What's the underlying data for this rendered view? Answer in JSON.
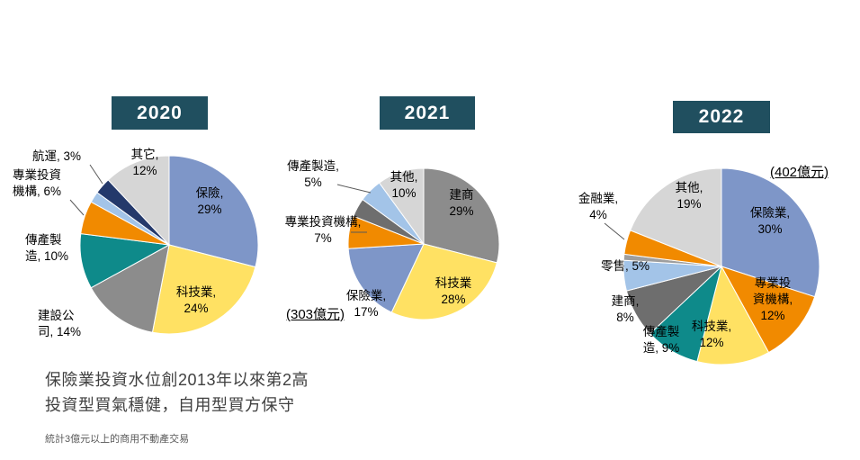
{
  "summary": {
    "line1": "保險業投資水位創2013年以來第2高",
    "line2": "投資型買氣穩健，自用型買方保守",
    "footnote": "統計3億元以上的商用不動產交易"
  },
  "colors": {
    "badge_background": "#204F5F",
    "insurance_blue": "#7E96C8",
    "tech_yellow": "#FFE163",
    "gray": "#8C8C8C",
    "dark_gray": "#6E6E6E",
    "teal": "#0E8A8A",
    "orange": "#F18A00",
    "navy": "#24396B",
    "light_gray": "#D6D6D6",
    "light_blue": "#A3C4E8"
  },
  "chart_data": [
    {
      "type": "pie",
      "title": "2020",
      "total_label": "",
      "direction": "clockwise",
      "start_angle_deg": 0,
      "slices": [
        {
          "name": "保險",
          "pct": 29,
          "color": "#7E96C8",
          "display": "保險,\n29%"
        },
        {
          "name": "科技業",
          "pct": 24,
          "color": "#FFE163",
          "display": "科技業,\n24%"
        },
        {
          "name": "建設公司",
          "pct": 14,
          "color": "#8C8C8C",
          "display": "建設公\n司, 14%"
        },
        {
          "name": "傳產製造",
          "pct": 10,
          "color": "#0E8A8A",
          "display": "傳產製\n造, 10%"
        },
        {
          "name": "專業投資機構",
          "pct": 6,
          "color": "#F18A00",
          "display": "專業投資\n機構, 6%"
        },
        {
          "name": "",
          "pct": 2,
          "color": "#A3C4E8",
          "display": ""
        },
        {
          "name": "航運",
          "pct": 3,
          "color": "#24396B",
          "display": "航運, 3%"
        },
        {
          "name": "其它",
          "pct": 12,
          "color": "#D6D6D6",
          "display": "其它,\n12%"
        }
      ]
    },
    {
      "type": "pie",
      "title": "2021",
      "total_label": "(303億元)",
      "direction": "clockwise",
      "start_angle_deg": 0,
      "slices": [
        {
          "name": "建商",
          "pct": 29,
          "color": "#8C8C8C",
          "display": "建商\n29%"
        },
        {
          "name": "科技業",
          "pct": 28,
          "color": "#FFE163",
          "display": "科技業\n28%"
        },
        {
          "name": "保險業",
          "pct": 17,
          "color": "#7E96C8",
          "display": "保險業,\n17%"
        },
        {
          "name": "專業投資機構",
          "pct": 7,
          "color": "#F18A00",
          "display": "專業投資機構,\n7%"
        },
        {
          "name": "",
          "pct": 4,
          "color": "#6E6E6E",
          "display": ""
        },
        {
          "name": "傳產製造",
          "pct": 5,
          "color": "#A3C4E8",
          "display": "傳產製造,\n5%"
        },
        {
          "name": "其他",
          "pct": 10,
          "color": "#D6D6D6",
          "display": "其他,\n10%"
        }
      ]
    },
    {
      "type": "pie",
      "title": "2022",
      "total_label": "(402億元)",
      "direction": "clockwise",
      "start_angle_deg": 0,
      "slices": [
        {
          "name": "保險業",
          "pct": 30,
          "color": "#7E96C8",
          "display": "保險業,\n30%"
        },
        {
          "name": "專業投資機構",
          "pct": 12,
          "color": "#F18A00",
          "display": "專業投\n資機構,\n12%"
        },
        {
          "name": "科技業",
          "pct": 12,
          "color": "#FFE163",
          "display": "科技業,\n12%"
        },
        {
          "name": "傳產製造",
          "pct": 9,
          "color": "#0E8A8A",
          "display": "傳產製\n造, 9%"
        },
        {
          "name": "建商",
          "pct": 8,
          "color": "#6E6E6E",
          "display": "建商,\n8%"
        },
        {
          "name": "零售",
          "pct": 5,
          "color": "#A3C4E8",
          "display": "零售, 5%"
        },
        {
          "name": "",
          "pct": 1,
          "color": "#9E9E9E",
          "display": ""
        },
        {
          "name": "金融業",
          "pct": 4,
          "color": "#F18A00",
          "display": "金融業,\n4%"
        },
        {
          "name": "其他",
          "pct": 19,
          "color": "#D6D6D6",
          "display": "其他,\n19%"
        }
      ]
    }
  ]
}
